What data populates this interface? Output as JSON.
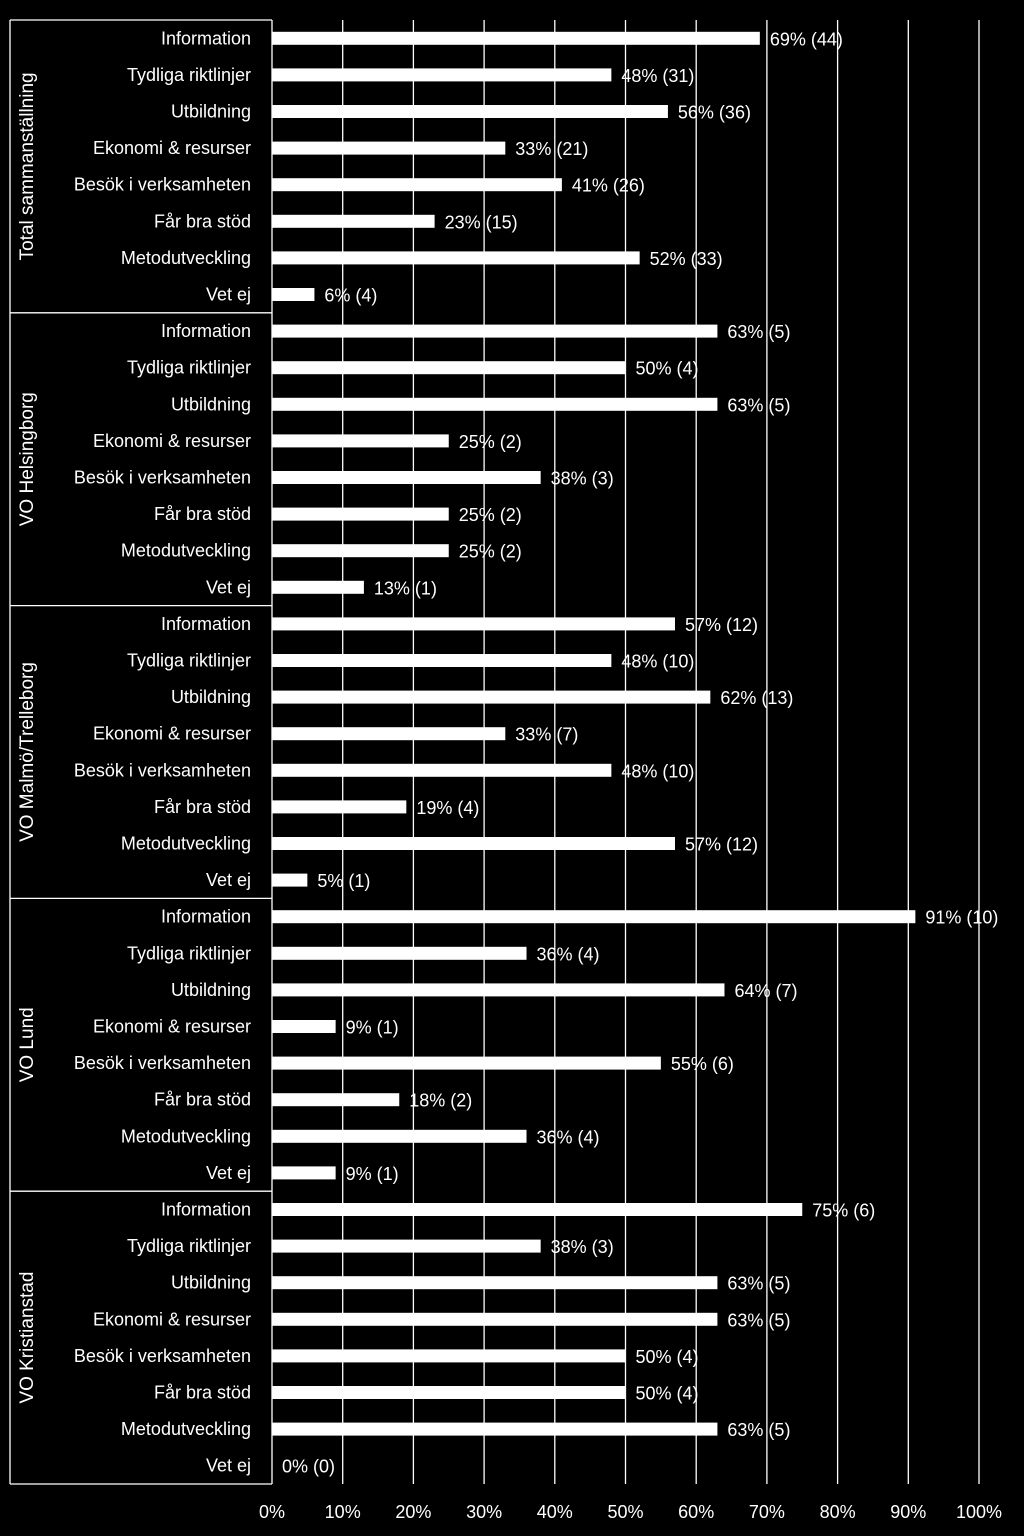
{
  "chart_data": {
    "type": "bar",
    "orientation": "horizontal",
    "xlim": [
      0,
      100
    ],
    "x_ticks": [
      "0%",
      "10%",
      "20%",
      "30%",
      "40%",
      "50%",
      "60%",
      "70%",
      "80%",
      "90%",
      "100%"
    ],
    "grid": "vertical lines at each 10%",
    "colors": {
      "background": "#000000",
      "bar": "#ffffff",
      "text": "#ffffff",
      "grid": "#ffffff"
    },
    "groups": [
      {
        "name": "Total sammanställning",
        "items": [
          {
            "label": "Information",
            "value": 69,
            "text": "69% (44)"
          },
          {
            "label": "Tydliga riktlinjer",
            "value": 48,
            "text": "48% (31)"
          },
          {
            "label": "Utbildning",
            "value": 56,
            "text": "56% (36)"
          },
          {
            "label": "Ekonomi & resurser",
            "value": 33,
            "text": "33% (21)"
          },
          {
            "label": "Besök i verksamheten",
            "value": 41,
            "text": "41% (26)"
          },
          {
            "label": "Får bra stöd",
            "value": 23,
            "text": "23% (15)"
          },
          {
            "label": "Metodutveckling",
            "value": 52,
            "text": "52% (33)"
          },
          {
            "label": "Vet ej",
            "value": 6,
            "text": "6% (4)"
          }
        ]
      },
      {
        "name": "VO Helsingborg",
        "items": [
          {
            "label": "Information",
            "value": 63,
            "text": "63% (5)"
          },
          {
            "label": "Tydliga riktlinjer",
            "value": 50,
            "text": "50% (4)"
          },
          {
            "label": "Utbildning",
            "value": 63,
            "text": "63% (5)"
          },
          {
            "label": "Ekonomi & resurser",
            "value": 25,
            "text": "25% (2)"
          },
          {
            "label": "Besök i verksamheten",
            "value": 38,
            "text": "38% (3)"
          },
          {
            "label": "Får bra stöd",
            "value": 25,
            "text": "25% (2)"
          },
          {
            "label": "Metodutveckling",
            "value": 25,
            "text": "25% (2)"
          },
          {
            "label": "Vet ej",
            "value": 13,
            "text": "13% (1)"
          }
        ]
      },
      {
        "name": "VO Malmö/Trelleborg",
        "items": [
          {
            "label": "Information",
            "value": 57,
            "text": "57% (12)"
          },
          {
            "label": "Tydliga riktlinjer",
            "value": 48,
            "text": "48% (10)"
          },
          {
            "label": "Utbildning",
            "value": 62,
            "text": "62% (13)"
          },
          {
            "label": "Ekonomi & resurser",
            "value": 33,
            "text": "33% (7)"
          },
          {
            "label": "Besök i verksamheten",
            "value": 48,
            "text": "48% (10)"
          },
          {
            "label": "Får bra stöd",
            "value": 19,
            "text": "19% (4)"
          },
          {
            "label": "Metodutveckling",
            "value": 57,
            "text": "57% (12)"
          },
          {
            "label": "Vet ej",
            "value": 5,
            "text": "5% (1)"
          }
        ]
      },
      {
        "name": "VO Lund",
        "items": [
          {
            "label": "Information",
            "value": 91,
            "text": "91% (10)"
          },
          {
            "label": "Tydliga riktlinjer",
            "value": 36,
            "text": "36% (4)"
          },
          {
            "label": "Utbildning",
            "value": 64,
            "text": "64% (7)"
          },
          {
            "label": "Ekonomi & resurser",
            "value": 9,
            "text": "9% (1)"
          },
          {
            "label": "Besök i verksamheten",
            "value": 55,
            "text": "55% (6)"
          },
          {
            "label": "Får bra stöd",
            "value": 18,
            "text": "18% (2)"
          },
          {
            "label": "Metodutveckling",
            "value": 36,
            "text": "36% (4)"
          },
          {
            "label": "Vet ej",
            "value": 9,
            "text": "9% (1)"
          }
        ]
      },
      {
        "name": "VO Kristianstad",
        "items": [
          {
            "label": "Information",
            "value": 75,
            "text": "75% (6)"
          },
          {
            "label": "Tydliga riktlinjer",
            "value": 38,
            "text": "38% (3)"
          },
          {
            "label": "Utbildning",
            "value": 63,
            "text": "63% (5)"
          },
          {
            "label": "Ekonomi & resurser",
            "value": 63,
            "text": "63% (5)"
          },
          {
            "label": "Besök i verksamheten",
            "value": 50,
            "text": "50% (4)"
          },
          {
            "label": "Får bra stöd",
            "value": 50,
            "text": "50% (4)"
          },
          {
            "label": "Metodutveckling",
            "value": 63,
            "text": "63% (5)"
          },
          {
            "label": "Vet ej",
            "value": 0,
            "text": "0% (0)"
          }
        ]
      }
    ]
  }
}
